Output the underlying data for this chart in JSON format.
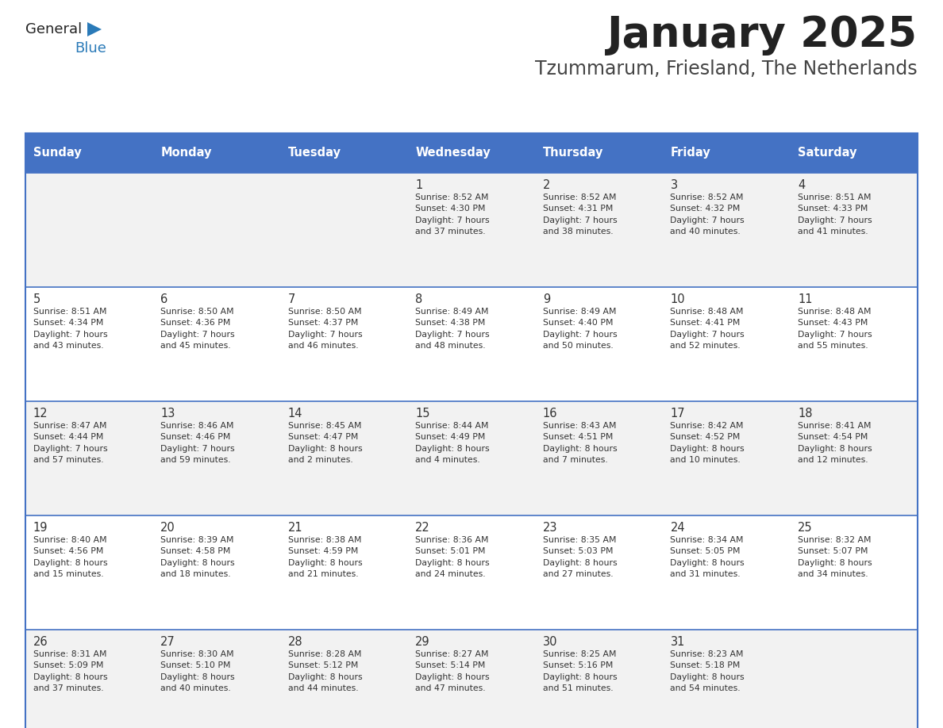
{
  "title": "January 2025",
  "subtitle": "Tzummarum, Friesland, The Netherlands",
  "header_bg": "#4472C4",
  "header_text_color": "#FFFFFF",
  "header_days": [
    "Sunday",
    "Monday",
    "Tuesday",
    "Wednesday",
    "Thursday",
    "Friday",
    "Saturday"
  ],
  "row_bg_odd": "#F2F2F2",
  "row_bg_even": "#FFFFFF",
  "cell_text_color": "#333333",
  "border_color": "#4472C4",
  "title_color": "#222222",
  "subtitle_color": "#444444",
  "logo_general_color": "#222222",
  "logo_blue_color": "#2A7AB8",
  "calendar": [
    [
      {
        "day": "",
        "info": ""
      },
      {
        "day": "",
        "info": ""
      },
      {
        "day": "",
        "info": ""
      },
      {
        "day": "1",
        "info": "Sunrise: 8:52 AM\nSunset: 4:30 PM\nDaylight: 7 hours\nand 37 minutes."
      },
      {
        "day": "2",
        "info": "Sunrise: 8:52 AM\nSunset: 4:31 PM\nDaylight: 7 hours\nand 38 minutes."
      },
      {
        "day": "3",
        "info": "Sunrise: 8:52 AM\nSunset: 4:32 PM\nDaylight: 7 hours\nand 40 minutes."
      },
      {
        "day": "4",
        "info": "Sunrise: 8:51 AM\nSunset: 4:33 PM\nDaylight: 7 hours\nand 41 minutes."
      }
    ],
    [
      {
        "day": "5",
        "info": "Sunrise: 8:51 AM\nSunset: 4:34 PM\nDaylight: 7 hours\nand 43 minutes."
      },
      {
        "day": "6",
        "info": "Sunrise: 8:50 AM\nSunset: 4:36 PM\nDaylight: 7 hours\nand 45 minutes."
      },
      {
        "day": "7",
        "info": "Sunrise: 8:50 AM\nSunset: 4:37 PM\nDaylight: 7 hours\nand 46 minutes."
      },
      {
        "day": "8",
        "info": "Sunrise: 8:49 AM\nSunset: 4:38 PM\nDaylight: 7 hours\nand 48 minutes."
      },
      {
        "day": "9",
        "info": "Sunrise: 8:49 AM\nSunset: 4:40 PM\nDaylight: 7 hours\nand 50 minutes."
      },
      {
        "day": "10",
        "info": "Sunrise: 8:48 AM\nSunset: 4:41 PM\nDaylight: 7 hours\nand 52 minutes."
      },
      {
        "day": "11",
        "info": "Sunrise: 8:48 AM\nSunset: 4:43 PM\nDaylight: 7 hours\nand 55 minutes."
      }
    ],
    [
      {
        "day": "12",
        "info": "Sunrise: 8:47 AM\nSunset: 4:44 PM\nDaylight: 7 hours\nand 57 minutes."
      },
      {
        "day": "13",
        "info": "Sunrise: 8:46 AM\nSunset: 4:46 PM\nDaylight: 7 hours\nand 59 minutes."
      },
      {
        "day": "14",
        "info": "Sunrise: 8:45 AM\nSunset: 4:47 PM\nDaylight: 8 hours\nand 2 minutes."
      },
      {
        "day": "15",
        "info": "Sunrise: 8:44 AM\nSunset: 4:49 PM\nDaylight: 8 hours\nand 4 minutes."
      },
      {
        "day": "16",
        "info": "Sunrise: 8:43 AM\nSunset: 4:51 PM\nDaylight: 8 hours\nand 7 minutes."
      },
      {
        "day": "17",
        "info": "Sunrise: 8:42 AM\nSunset: 4:52 PM\nDaylight: 8 hours\nand 10 minutes."
      },
      {
        "day": "18",
        "info": "Sunrise: 8:41 AM\nSunset: 4:54 PM\nDaylight: 8 hours\nand 12 minutes."
      }
    ],
    [
      {
        "day": "19",
        "info": "Sunrise: 8:40 AM\nSunset: 4:56 PM\nDaylight: 8 hours\nand 15 minutes."
      },
      {
        "day": "20",
        "info": "Sunrise: 8:39 AM\nSunset: 4:58 PM\nDaylight: 8 hours\nand 18 minutes."
      },
      {
        "day": "21",
        "info": "Sunrise: 8:38 AM\nSunset: 4:59 PM\nDaylight: 8 hours\nand 21 minutes."
      },
      {
        "day": "22",
        "info": "Sunrise: 8:36 AM\nSunset: 5:01 PM\nDaylight: 8 hours\nand 24 minutes."
      },
      {
        "day": "23",
        "info": "Sunrise: 8:35 AM\nSunset: 5:03 PM\nDaylight: 8 hours\nand 27 minutes."
      },
      {
        "day": "24",
        "info": "Sunrise: 8:34 AM\nSunset: 5:05 PM\nDaylight: 8 hours\nand 31 minutes."
      },
      {
        "day": "25",
        "info": "Sunrise: 8:32 AM\nSunset: 5:07 PM\nDaylight: 8 hours\nand 34 minutes."
      }
    ],
    [
      {
        "day": "26",
        "info": "Sunrise: 8:31 AM\nSunset: 5:09 PM\nDaylight: 8 hours\nand 37 minutes."
      },
      {
        "day": "27",
        "info": "Sunrise: 8:30 AM\nSunset: 5:10 PM\nDaylight: 8 hours\nand 40 minutes."
      },
      {
        "day": "28",
        "info": "Sunrise: 8:28 AM\nSunset: 5:12 PM\nDaylight: 8 hours\nand 44 minutes."
      },
      {
        "day": "29",
        "info": "Sunrise: 8:27 AM\nSunset: 5:14 PM\nDaylight: 8 hours\nand 47 minutes."
      },
      {
        "day": "30",
        "info": "Sunrise: 8:25 AM\nSunset: 5:16 PM\nDaylight: 8 hours\nand 51 minutes."
      },
      {
        "day": "31",
        "info": "Sunrise: 8:23 AM\nSunset: 5:18 PM\nDaylight: 8 hours\nand 54 minutes."
      },
      {
        "day": "",
        "info": ""
      }
    ]
  ]
}
